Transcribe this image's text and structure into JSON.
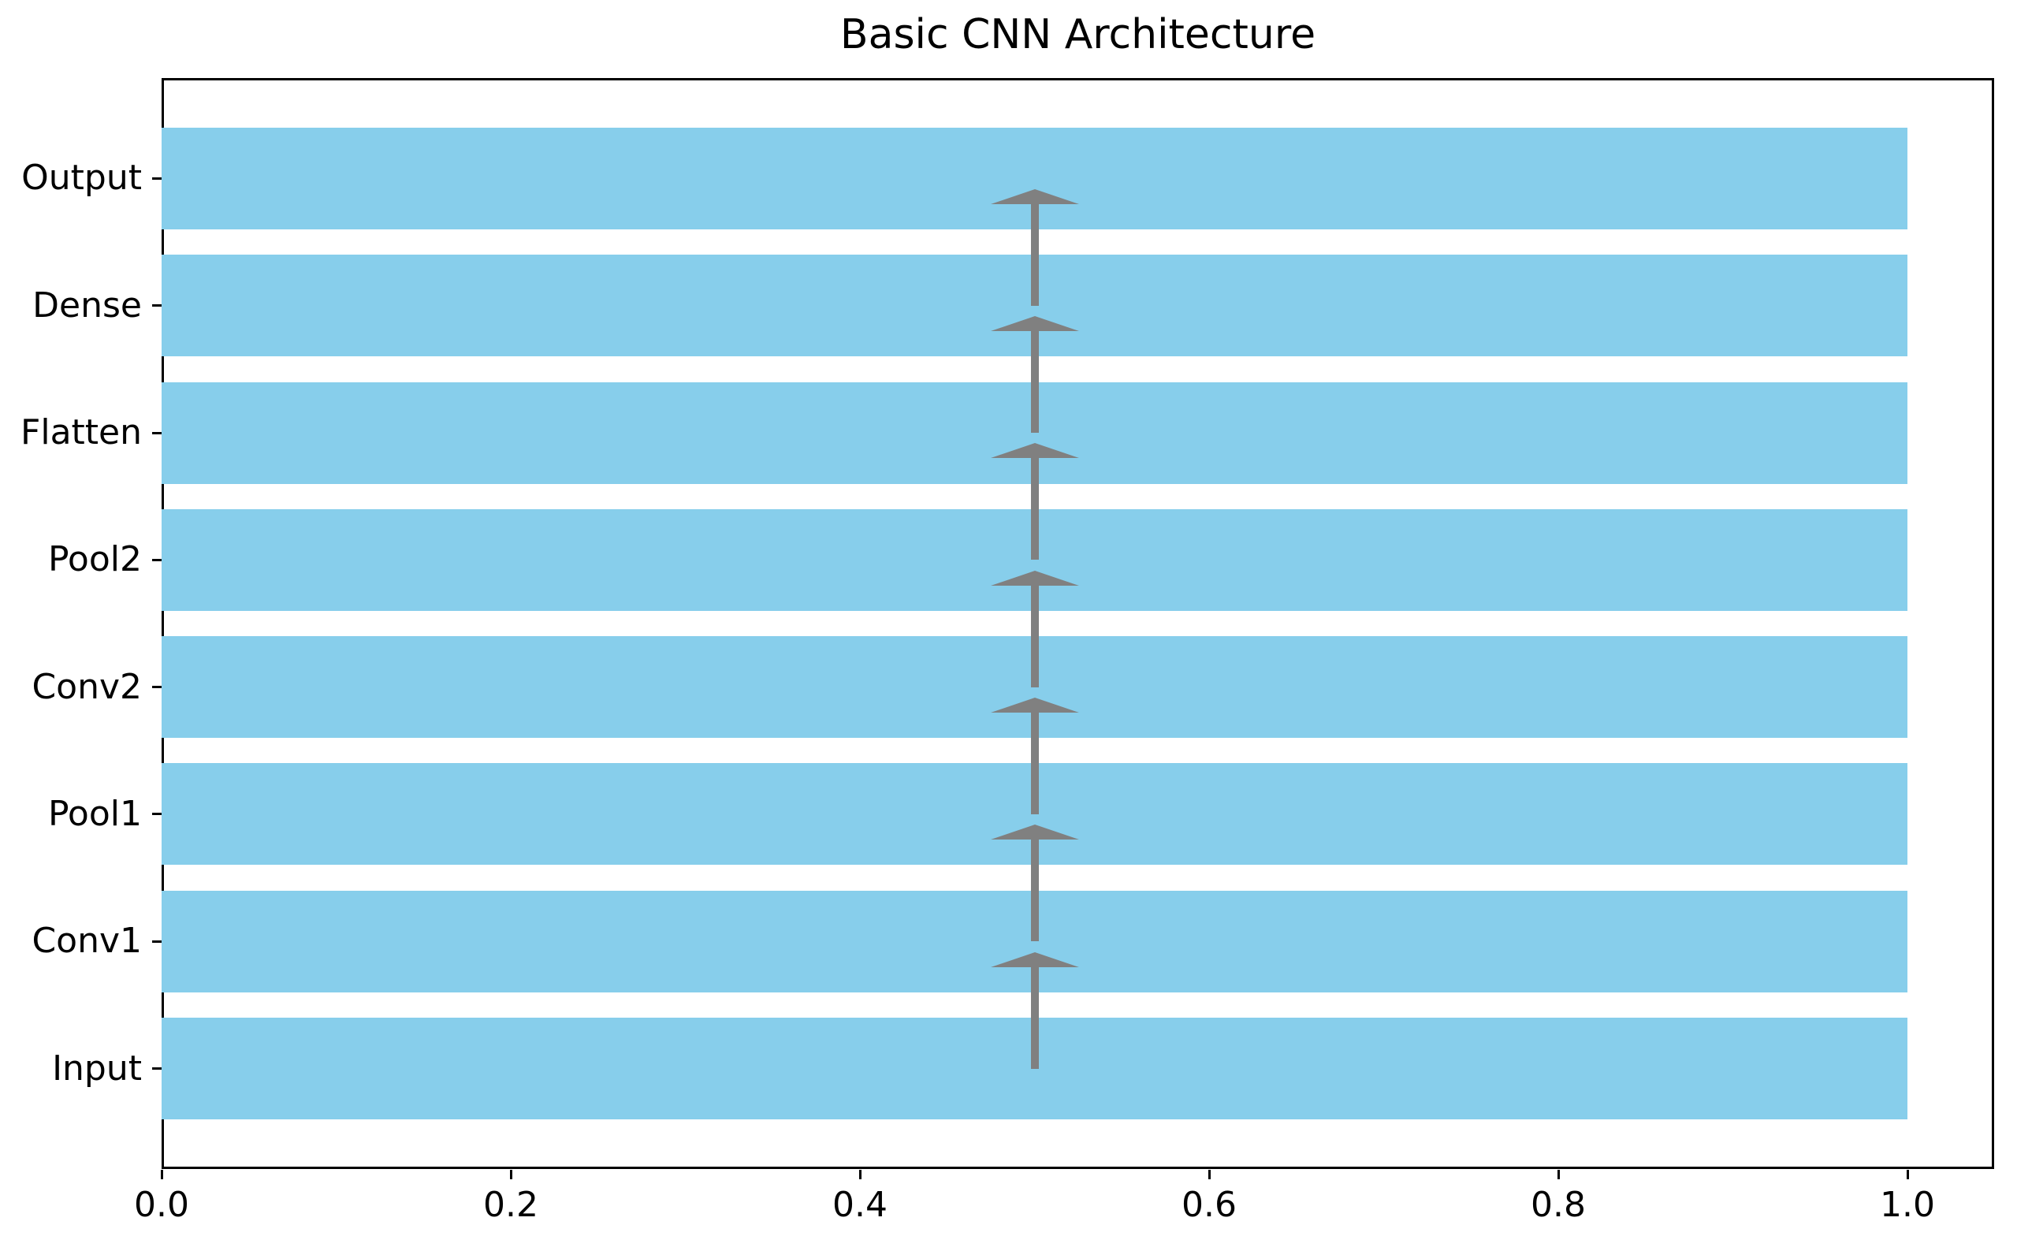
{
  "colors": {
    "background": "#ffffff",
    "bar": "#87ceeb",
    "arrow": "#808080",
    "axis": "#000000",
    "text": "#000000"
  },
  "chart_data": {
    "type": "bar",
    "orientation": "horizontal",
    "title": "Basic CNN Architecture",
    "categories": [
      "Input",
      "Conv1",
      "Pool1",
      "Conv2",
      "Pool2",
      "Flatten",
      "Dense",
      "Output"
    ],
    "values": [
      1.0,
      1.0,
      1.0,
      1.0,
      1.0,
      1.0,
      1.0,
      1.0
    ],
    "bar_color": "#87ceeb",
    "bar_thickness_fraction": 0.8,
    "xlabel": "",
    "ylabel": "",
    "xlim": [
      0.0,
      1.05
    ],
    "xtick_labels": [
      "0.0",
      "0.2",
      "0.4",
      "0.6",
      "0.8",
      "1.0"
    ],
    "xtick_values": [
      0.0,
      0.2,
      0.4,
      0.6,
      0.8,
      1.0
    ],
    "grid": false,
    "legend": false,
    "annotations": {
      "arrow_x": 0.5,
      "arrow_color": "#808080",
      "connections": [
        {
          "from": "Input",
          "to": "Conv1"
        },
        {
          "from": "Conv1",
          "to": "Pool1"
        },
        {
          "from": "Pool1",
          "to": "Conv2"
        },
        {
          "from": "Conv2",
          "to": "Pool2"
        },
        {
          "from": "Pool2",
          "to": "Flatten"
        },
        {
          "from": "Flatten",
          "to": "Dense"
        },
        {
          "from": "Dense",
          "to": "Output"
        }
      ]
    }
  }
}
